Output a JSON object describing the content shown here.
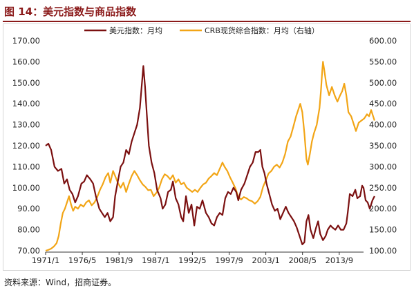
{
  "header": {
    "title": "图 14：美元指数与商品指数"
  },
  "footer": {
    "source": "资料来源：Wind，招商证券。"
  },
  "colors": {
    "usd": "#7B1010",
    "crb": "#F2A516",
    "title": "#8B1A1A"
  },
  "chart_data": {
    "type": "line",
    "title": "",
    "x_tick_labels": [
      "1971/1",
      "1976/5",
      "1981/9",
      "1987/1",
      "1992/5",
      "1997/9",
      "2003/1",
      "2008/5",
      "2013/9"
    ],
    "x_ticks_t": [
      1971.0,
      1976.33,
      1981.67,
      1987.0,
      1992.33,
      1997.67,
      2003.0,
      2008.33,
      2013.67
    ],
    "xlim": [
      1971.0,
      2017.2
    ],
    "y_left": {
      "lim": [
        70,
        170
      ],
      "ticks": [
        "70.00",
        "80.00",
        "90.00",
        "100.00",
        "110.00",
        "120.00",
        "130.00",
        "140.00",
        "150.00",
        "160.00",
        "170.00"
      ]
    },
    "y_right": {
      "lim": [
        100,
        600
      ],
      "ticks": [
        "100.00",
        "150.00",
        "200.00",
        "250.00",
        "300.00",
        "350.00",
        "400.00",
        "450.00",
        "500.00",
        "550.00",
        "600.00"
      ]
    },
    "legend_position": "top",
    "series": [
      {
        "name": "美元指数：月均",
        "axis": "left",
        "color": "#7B1010",
        "points": [
          [
            1971.0,
            120
          ],
          [
            1971.4,
            121
          ],
          [
            1971.8,
            118
          ],
          [
            1972.3,
            110
          ],
          [
            1972.8,
            108
          ],
          [
            1973.3,
            109
          ],
          [
            1973.7,
            102
          ],
          [
            1974.1,
            104
          ],
          [
            1974.5,
            99
          ],
          [
            1974.9,
            97
          ],
          [
            1975.3,
            93
          ],
          [
            1975.7,
            96
          ],
          [
            1976.2,
            102
          ],
          [
            1976.6,
            103
          ],
          [
            1977.0,
            106
          ],
          [
            1977.5,
            104
          ],
          [
            1977.9,
            102
          ],
          [
            1978.3,
            96
          ],
          [
            1978.8,
            90
          ],
          [
            1979.2,
            88
          ],
          [
            1979.6,
            86
          ],
          [
            1980.0,
            88
          ],
          [
            1980.4,
            84
          ],
          [
            1980.8,
            86
          ],
          [
            1981.1,
            96
          ],
          [
            1981.5,
            103
          ],
          [
            1981.9,
            110
          ],
          [
            1982.3,
            112
          ],
          [
            1982.7,
            118
          ],
          [
            1983.1,
            116
          ],
          [
            1983.5,
            122
          ],
          [
            1983.9,
            126
          ],
          [
            1984.3,
            130
          ],
          [
            1984.7,
            138
          ],
          [
            1985.0,
            150
          ],
          [
            1985.2,
            158
          ],
          [
            1985.45,
            148
          ],
          [
            1985.7,
            135
          ],
          [
            1986.0,
            120
          ],
          [
            1986.4,
            112
          ],
          [
            1986.8,
            107
          ],
          [
            1987.2,
            99
          ],
          [
            1987.7,
            95
          ],
          [
            1988.0,
            90
          ],
          [
            1988.4,
            92
          ],
          [
            1988.8,
            98
          ],
          [
            1989.2,
            99
          ],
          [
            1989.5,
            103
          ],
          [
            1989.9,
            95
          ],
          [
            1990.3,
            92
          ],
          [
            1990.7,
            86
          ],
          [
            1991.0,
            84
          ],
          [
            1991.4,
            96
          ],
          [
            1991.8,
            88
          ],
          [
            1992.2,
            92
          ],
          [
            1992.6,
            82
          ],
          [
            1993.0,
            91
          ],
          [
            1993.4,
            90
          ],
          [
            1993.8,
            94
          ],
          [
            1994.3,
            88
          ],
          [
            1994.7,
            86
          ],
          [
            1995.1,
            83
          ],
          [
            1995.5,
            82
          ],
          [
            1995.9,
            86
          ],
          [
            1996.3,
            88
          ],
          [
            1996.7,
            87
          ],
          [
            1997.1,
            95
          ],
          [
            1997.5,
            98
          ],
          [
            1997.9,
            97
          ],
          [
            1998.3,
            100
          ],
          [
            1998.7,
            98
          ],
          [
            1999.0,
            94
          ],
          [
            1999.4,
            99
          ],
          [
            1999.9,
            102
          ],
          [
            2000.3,
            106
          ],
          [
            2000.7,
            110
          ],
          [
            2001.1,
            112
          ],
          [
            2001.5,
            117
          ],
          [
            2001.9,
            117
          ],
          [
            2002.2,
            118
          ],
          [
            2002.5,
            110
          ],
          [
            2002.8,
            107
          ],
          [
            2003.1,
            102
          ],
          [
            2003.5,
            97
          ],
          [
            2003.9,
            92
          ],
          [
            2004.3,
            89
          ],
          [
            2004.7,
            90
          ],
          [
            2005.1,
            85
          ],
          [
            2005.5,
            88
          ],
          [
            2005.9,
            91
          ],
          [
            2006.3,
            88
          ],
          [
            2006.7,
            86
          ],
          [
            2007.1,
            84
          ],
          [
            2007.5,
            81
          ],
          [
            2007.9,
            77
          ],
          [
            2008.3,
            73
          ],
          [
            2008.6,
            74
          ],
          [
            2008.9,
            84
          ],
          [
            2009.2,
            87
          ],
          [
            2009.5,
            80
          ],
          [
            2009.9,
            76
          ],
          [
            2010.3,
            81
          ],
          [
            2010.6,
            84
          ],
          [
            2010.9,
            78
          ],
          [
            2011.3,
            75
          ],
          [
            2011.7,
            77
          ],
          [
            2012.0,
            80
          ],
          [
            2012.4,
            82
          ],
          [
            2012.7,
            81
          ],
          [
            2013.1,
            80
          ],
          [
            2013.5,
            82
          ],
          [
            2013.9,
            80
          ],
          [
            2014.3,
            80
          ],
          [
            2014.7,
            83
          ],
          [
            2014.9,
            88
          ],
          [
            2015.2,
            97
          ],
          [
            2015.6,
            96
          ],
          [
            2016.0,
            99
          ],
          [
            2016.3,
            95
          ],
          [
            2016.7,
            96
          ],
          [
            2017.0,
            101
          ],
          [
            2017.2,
            100
          ],
          [
            2017.5,
            94
          ],
          [
            2017.8,
            93
          ],
          [
            2018.1,
            90
          ],
          [
            2018.5,
            94
          ],
          [
            2018.8,
            96
          ]
        ]
      },
      {
        "name": "CRB现货综合指数：月均（右轴）",
        "axis": "right",
        "color": "#F2A516",
        "points": [
          [
            1971.0,
            100
          ],
          [
            1971.4,
            102
          ],
          [
            1971.8,
            105
          ],
          [
            1972.2,
            110
          ],
          [
            1972.6,
            118
          ],
          [
            1972.9,
            135
          ],
          [
            1973.2,
            165
          ],
          [
            1973.5,
            190
          ],
          [
            1973.8,
            200
          ],
          [
            1974.1,
            215
          ],
          [
            1974.4,
            230
          ],
          [
            1974.7,
            210
          ],
          [
            1975.0,
            195
          ],
          [
            1975.3,
            205
          ],
          [
            1975.7,
            200
          ],
          [
            1976.1,
            210
          ],
          [
            1976.5,
            205
          ],
          [
            1976.9,
            215
          ],
          [
            1977.3,
            220
          ],
          [
            1977.7,
            208
          ],
          [
            1978.1,
            215
          ],
          [
            1978.5,
            228
          ],
          [
            1978.9,
            245
          ],
          [
            1979.3,
            258
          ],
          [
            1979.7,
            275
          ],
          [
            1980.1,
            285
          ],
          [
            1980.4,
            262
          ],
          [
            1980.8,
            290
          ],
          [
            1981.1,
            278
          ],
          [
            1981.5,
            262
          ],
          [
            1981.9,
            250
          ],
          [
            1982.3,
            262
          ],
          [
            1982.7,
            240
          ],
          [
            1983.1,
            260
          ],
          [
            1983.5,
            278
          ],
          [
            1983.9,
            290
          ],
          [
            1984.3,
            280
          ],
          [
            1984.7,
            268
          ],
          [
            1985.1,
            258
          ],
          [
            1985.5,
            252
          ],
          [
            1985.9,
            244
          ],
          [
            1986.3,
            245
          ],
          [
            1986.7,
            230
          ],
          [
            1987.1,
            238
          ],
          [
            1987.5,
            250
          ],
          [
            1987.9,
            270
          ],
          [
            1988.3,
            282
          ],
          [
            1988.7,
            278
          ],
          [
            1989.1,
            270
          ],
          [
            1989.5,
            280
          ],
          [
            1989.9,
            262
          ],
          [
            1990.3,
            270
          ],
          [
            1990.7,
            258
          ],
          [
            1991.1,
            262
          ],
          [
            1991.5,
            250
          ],
          [
            1991.9,
            245
          ],
          [
            1992.3,
            240
          ],
          [
            1992.7,
            245
          ],
          [
            1993.1,
            240
          ],
          [
            1993.5,
            250
          ],
          [
            1993.9,
            258
          ],
          [
            1994.3,
            262
          ],
          [
            1994.7,
            272
          ],
          [
            1995.1,
            278
          ],
          [
            1995.5,
            285
          ],
          [
            1995.9,
            280
          ],
          [
            1996.3,
            295
          ],
          [
            1996.7,
            310
          ],
          [
            1997.0,
            300
          ],
          [
            1997.4,
            290
          ],
          [
            1997.8,
            275
          ],
          [
            1998.2,
            262
          ],
          [
            1998.6,
            248
          ],
          [
            1999.0,
            228
          ],
          [
            1999.4,
            222
          ],
          [
            1999.8,
            228
          ],
          [
            2000.2,
            225
          ],
          [
            2000.6,
            220
          ],
          [
            2001.0,
            218
          ],
          [
            2001.4,
            212
          ],
          [
            2001.8,
            218
          ],
          [
            2002.2,
            228
          ],
          [
            2002.6,
            252
          ],
          [
            2003.0,
            268
          ],
          [
            2003.4,
            284
          ],
          [
            2003.8,
            290
          ],
          [
            2004.2,
            300
          ],
          [
            2004.6,
            305
          ],
          [
            2005.0,
            298
          ],
          [
            2005.4,
            310
          ],
          [
            2005.8,
            330
          ],
          [
            2006.2,
            360
          ],
          [
            2006.6,
            372
          ],
          [
            2007.0,
            395
          ],
          [
            2007.4,
            420
          ],
          [
            2007.8,
            440
          ],
          [
            2008.0,
            450
          ],
          [
            2008.3,
            430
          ],
          [
            2008.6,
            380
          ],
          [
            2008.9,
            318
          ],
          [
            2009.1,
            305
          ],
          [
            2009.4,
            330
          ],
          [
            2009.7,
            360
          ],
          [
            2010.0,
            380
          ],
          [
            2010.4,
            400
          ],
          [
            2010.8,
            440
          ],
          [
            2011.0,
            480
          ],
          [
            2011.2,
            530
          ],
          [
            2011.3,
            550
          ],
          [
            2011.5,
            530
          ],
          [
            2011.8,
            495
          ],
          [
            2012.2,
            470
          ],
          [
            2012.6,
            490
          ],
          [
            2013.0,
            470
          ],
          [
            2013.4,
            455
          ],
          [
            2013.8,
            470
          ],
          [
            2014.1,
            480
          ],
          [
            2014.4,
            498
          ],
          [
            2014.7,
            470
          ],
          [
            2015.0,
            430
          ],
          [
            2015.4,
            420
          ],
          [
            2015.8,
            400
          ],
          [
            2016.1,
            385
          ],
          [
            2016.5,
            405
          ],
          [
            2016.9,
            410
          ],
          [
            2017.3,
            415
          ],
          [
            2017.7,
            425
          ],
          [
            2018.0,
            420
          ],
          [
            2018.3,
            435
          ],
          [
            2018.6,
            420
          ],
          [
            2018.8,
            410
          ]
        ]
      }
    ]
  }
}
